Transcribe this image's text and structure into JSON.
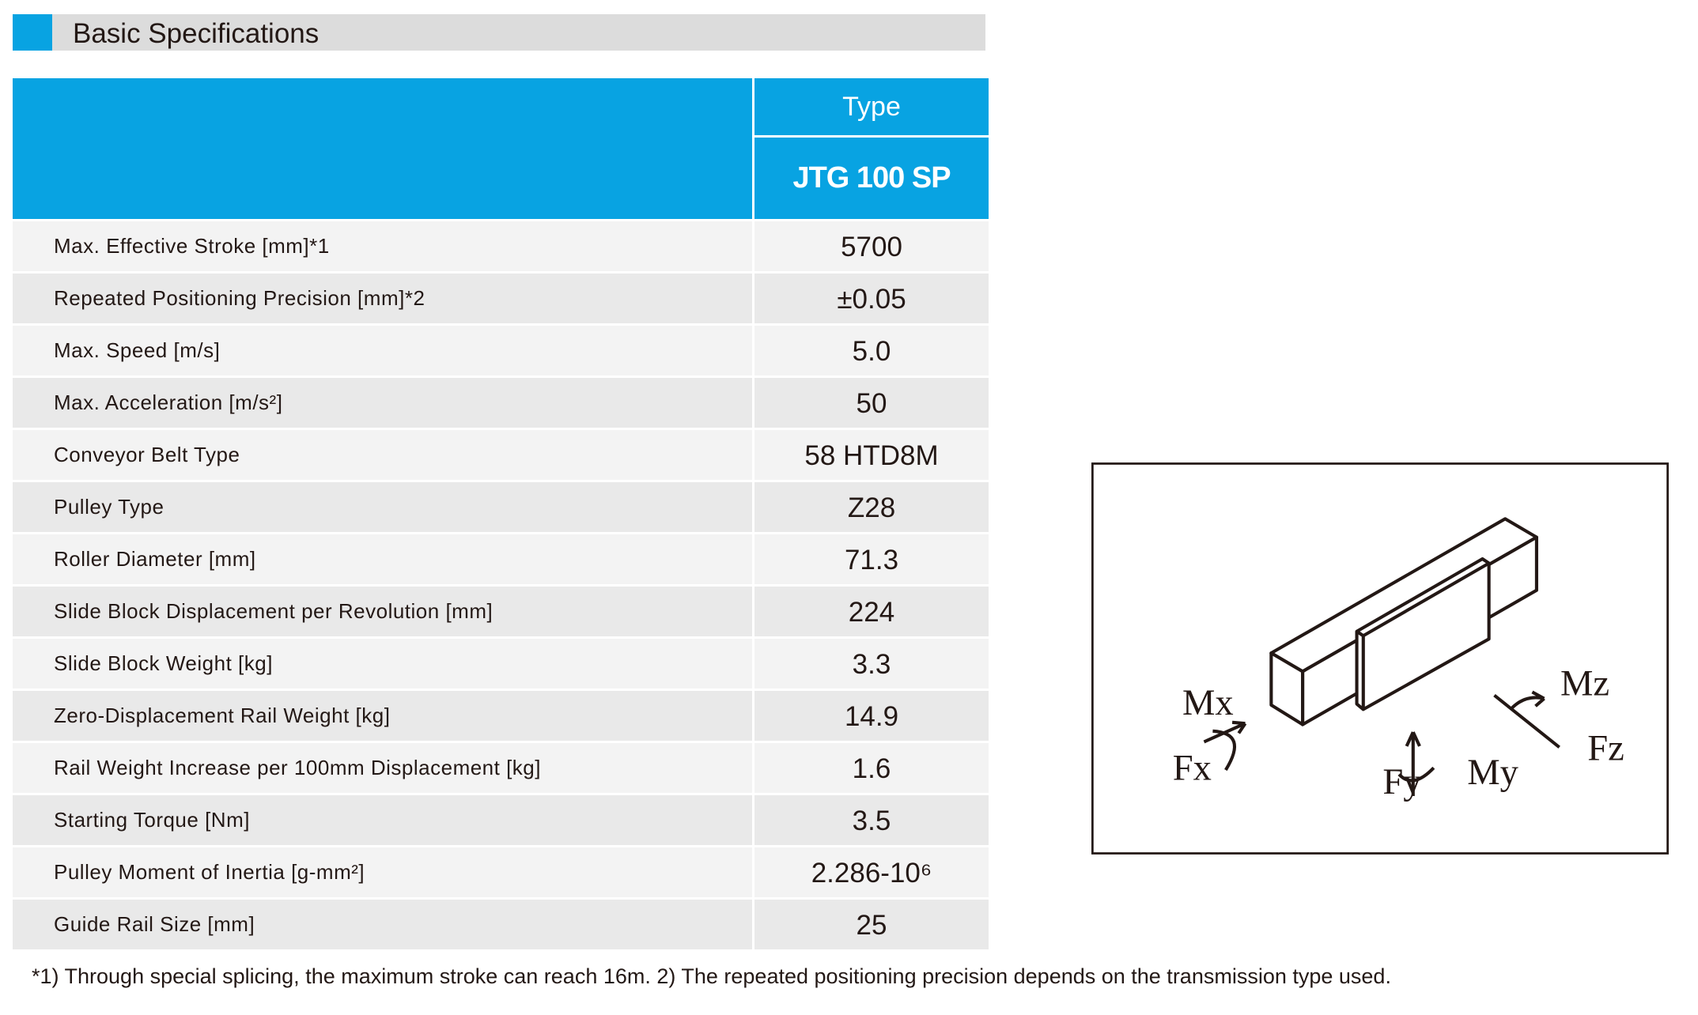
{
  "header": {
    "title": "Basic Specifications"
  },
  "table": {
    "type_label": "Type",
    "model": "JTG 100 SP",
    "rows": [
      [
        "Max. Effective Stroke [mm]*1",
        "5700"
      ],
      [
        "Repeated Positioning Precision [mm]*2",
        "±0.05"
      ],
      [
        "Max. Speed [m/s]",
        "5.0"
      ],
      [
        "Max.  Acceleration [m/s²]",
        "50"
      ],
      [
        "Conveyor Belt Type",
        "58  HTD8M"
      ],
      [
        "Pulley Type",
        "Z28"
      ],
      [
        "Roller Diameter [mm]",
        "71.3"
      ],
      [
        "Slide Block Displacement per Revolution [mm]",
        "224"
      ],
      [
        "Slide Block Weight [kg]",
        "3.3"
      ],
      [
        "Zero-Displacement Rail Weight [kg]",
        "14.9"
      ],
      [
        "Rail Weight Increase per 100mm Displacement [kg]",
        "1.6"
      ],
      [
        "Starting Torque [Nm]",
        "3.5"
      ],
      [
        "Pulley Moment of Inertia [g-mm²]",
        "2.286-10⁶"
      ],
      [
        "Guide Rail Size [mm]",
        "25"
      ]
    ]
  },
  "footnote": "*1) Through special splicing, the maximum stroke can reach 16m.   2) The repeated positioning precision depends on the transmission type used.",
  "diagram": {
    "labels": [
      "Mx",
      "Fx",
      "Fy",
      "My",
      "Mz",
      "Fz"
    ]
  }
}
